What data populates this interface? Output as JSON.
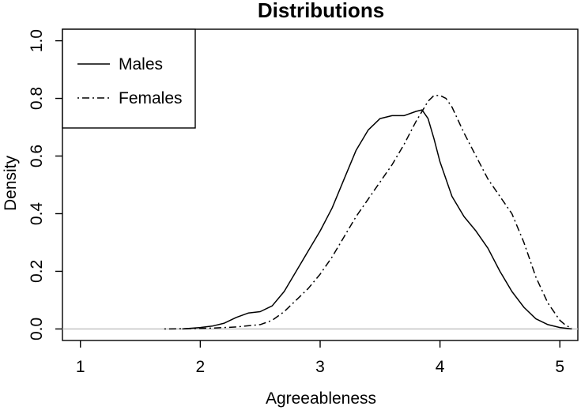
{
  "chart_data": {
    "type": "line",
    "title": "Distributions",
    "xlabel": "Agreeableness",
    "ylabel": "Density",
    "xlim": [
      0.85,
      5.15
    ],
    "ylim": [
      -0.04,
      1.04
    ],
    "x_ticks": [
      1,
      2,
      3,
      4,
      5
    ],
    "x_tick_labels": [
      "1",
      "2",
      "3",
      "4",
      "5"
    ],
    "y_ticks": [
      0.0,
      0.2,
      0.4,
      0.6,
      0.8,
      1.0
    ],
    "y_tick_labels": [
      "0.0",
      "0.2",
      "0.4",
      "0.6",
      "0.8",
      "1.0"
    ],
    "grid": false,
    "reference_line": {
      "y": 0.0,
      "color": "#bebebe"
    },
    "legend": {
      "position": "top-left"
    },
    "series": [
      {
        "name": "Males",
        "line_style": "solid",
        "color": "#000000",
        "x": [
          1.85,
          2.0,
          2.1,
          2.2,
          2.3,
          2.4,
          2.5,
          2.6,
          2.7,
          2.8,
          2.9,
          3.0,
          3.1,
          3.2,
          3.3,
          3.4,
          3.5,
          3.6,
          3.7,
          3.8,
          3.85,
          3.9,
          3.95,
          4.0,
          4.1,
          4.2,
          4.3,
          4.4,
          4.5,
          4.6,
          4.7,
          4.8,
          4.9,
          5.0,
          5.1
        ],
        "y": [
          0.0,
          0.005,
          0.01,
          0.02,
          0.04,
          0.055,
          0.06,
          0.08,
          0.13,
          0.2,
          0.27,
          0.34,
          0.42,
          0.52,
          0.62,
          0.69,
          0.73,
          0.74,
          0.74,
          0.755,
          0.76,
          0.73,
          0.66,
          0.58,
          0.46,
          0.39,
          0.34,
          0.28,
          0.2,
          0.13,
          0.075,
          0.035,
          0.015,
          0.005,
          0.0
        ]
      },
      {
        "name": "Females",
        "line_style": "dotdash",
        "color": "#000000",
        "x": [
          1.7,
          1.9,
          2.1,
          2.3,
          2.5,
          2.6,
          2.7,
          2.8,
          2.9,
          3.0,
          3.1,
          3.2,
          3.3,
          3.4,
          3.5,
          3.6,
          3.7,
          3.8,
          3.9,
          3.95,
          4.0,
          4.05,
          4.1,
          4.2,
          4.3,
          4.4,
          4.5,
          4.6,
          4.7,
          4.8,
          4.9,
          5.0,
          5.05,
          5.1
        ],
        "y": [
          0.0,
          0.001,
          0.003,
          0.007,
          0.015,
          0.03,
          0.06,
          0.1,
          0.14,
          0.19,
          0.25,
          0.32,
          0.39,
          0.45,
          0.51,
          0.57,
          0.64,
          0.72,
          0.79,
          0.81,
          0.81,
          0.8,
          0.77,
          0.68,
          0.6,
          0.52,
          0.46,
          0.4,
          0.3,
          0.18,
          0.09,
          0.03,
          0.012,
          0.003
        ]
      }
    ]
  }
}
